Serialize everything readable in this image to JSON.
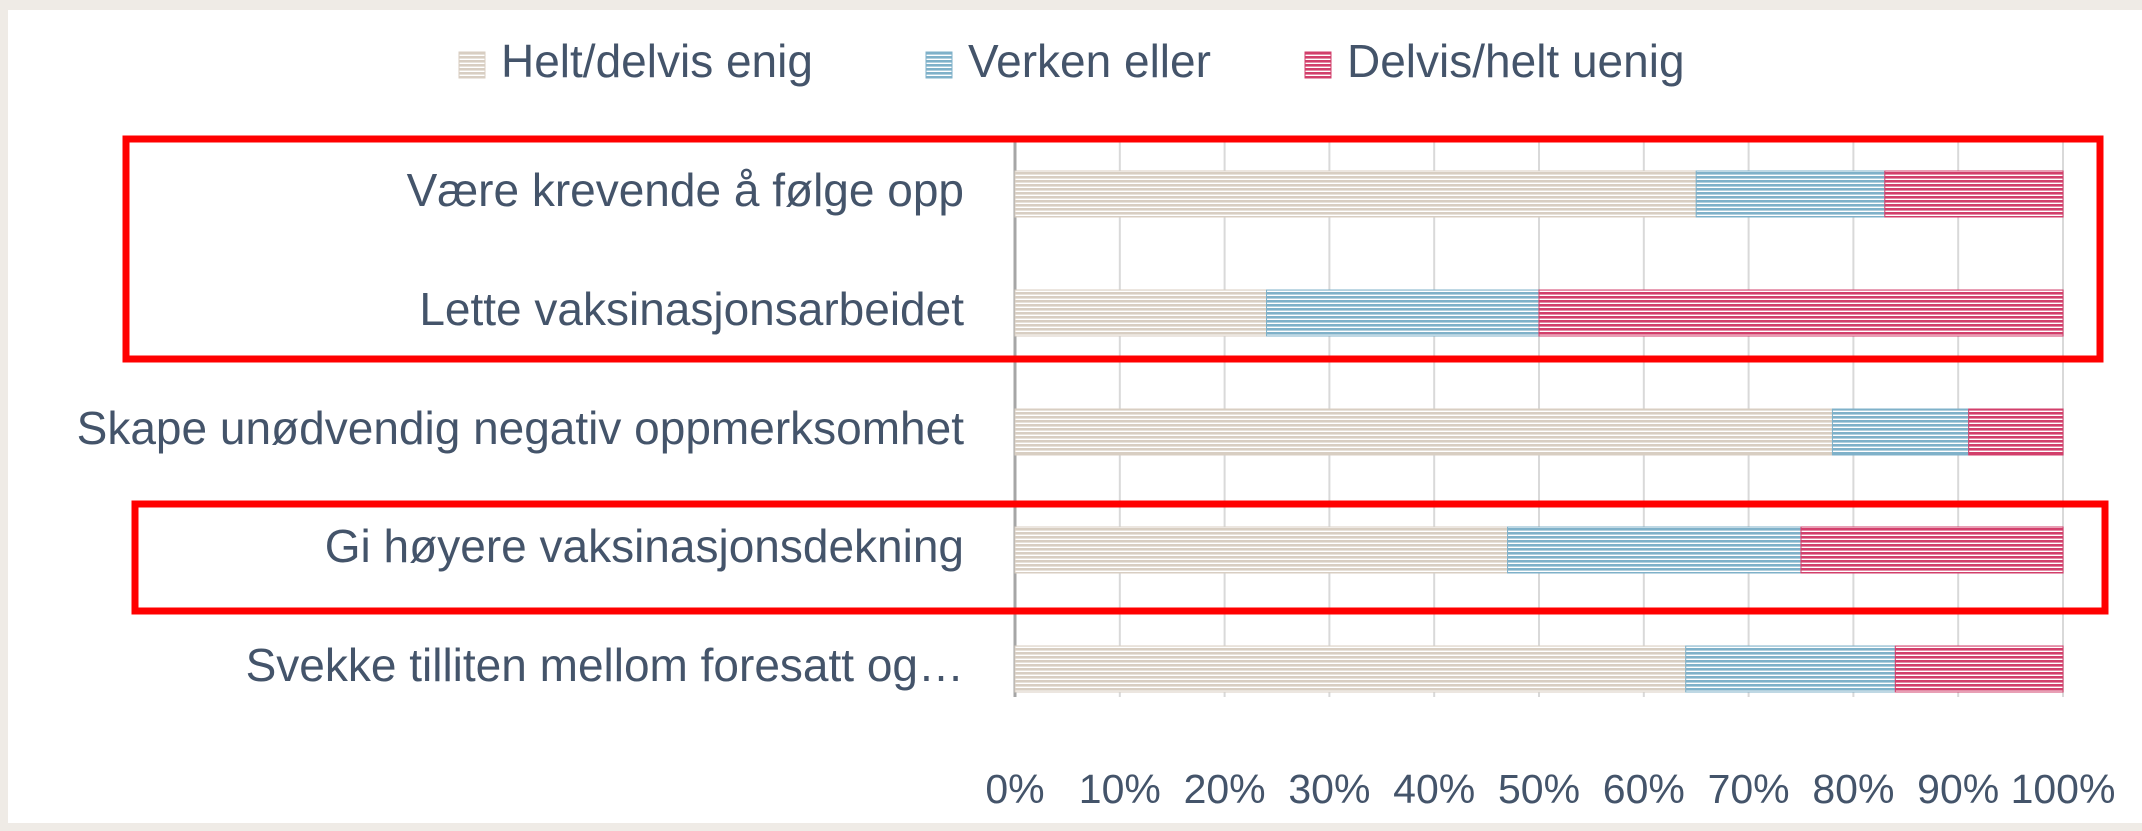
{
  "chart_data": {
    "type": "stacked_bar_horizontal",
    "categories": [
      "Være krevende å følge opp",
      "Lette vaksinasjonsarbeidet",
      "Skape unødvendig negativ oppmerksomhet",
      "Gi høyere vaksinasjonsdekning",
      "Svekke tilliten mellom foresatt og…"
    ],
    "series": [
      {
        "name": "Helt/delvis enig",
        "color": "#d8cec2",
        "values": [
          65,
          24,
          78,
          47,
          64
        ]
      },
      {
        "name": "Verken eller",
        "color": "#7fb1c9",
        "values": [
          18,
          26,
          13,
          28,
          20
        ]
      },
      {
        "name": "Delvis/helt uenig",
        "color": "#d23f6b",
        "values": [
          17,
          50,
          9,
          25,
          16
        ]
      }
    ],
    "xlim": [
      0,
      100
    ],
    "xticks": [
      {
        "value": 0,
        "label": "0%"
      },
      {
        "value": 10,
        "label": "10%"
      },
      {
        "value": 20,
        "label": "20%"
      },
      {
        "value": 30,
        "label": "30%"
      },
      {
        "value": 40,
        "label": "40%"
      },
      {
        "value": 50,
        "label": "50%"
      },
      {
        "value": 60,
        "label": "60%"
      },
      {
        "value": 70,
        "label": "70%"
      },
      {
        "value": 80,
        "label": "80%"
      },
      {
        "value": 90,
        "label": "90%"
      },
      {
        "value": 100,
        "label": "100%"
      }
    ],
    "grid": true,
    "legend": "top"
  }
}
